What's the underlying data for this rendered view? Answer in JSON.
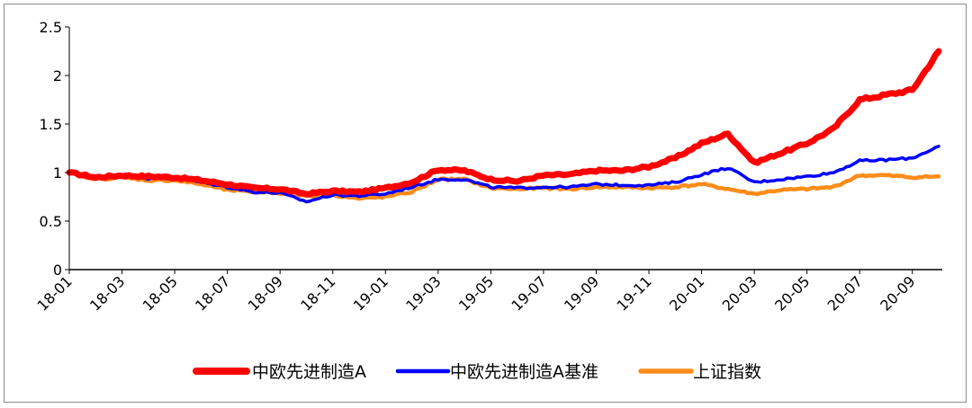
{
  "chart_data": {
    "type": "line",
    "title": "",
    "xlabel": "",
    "ylabel": "",
    "ylim": [
      0,
      2.5
    ],
    "yticks": [
      "0",
      "0.5",
      "1",
      "1.5",
      "2",
      "2.5"
    ],
    "xticks": [
      "18-01",
      "18-03",
      "18-05",
      "18-07",
      "18-09",
      "18-11",
      "19-01",
      "19-03",
      "19-05",
      "19-07",
      "19-09",
      "19-11",
      "20-01",
      "20-03",
      "20-05",
      "20-07",
      "20-09"
    ],
    "x": [
      "18-01",
      "18-02",
      "18-03",
      "18-04",
      "18-05",
      "18-06",
      "18-07",
      "18-08",
      "18-09",
      "18-10",
      "18-11",
      "18-12",
      "19-01",
      "19-02",
      "19-03",
      "19-04",
      "19-05",
      "19-06",
      "19-07",
      "19-08",
      "19-09",
      "19-10",
      "19-11",
      "19-12",
      "20-01",
      "20-02",
      "20-03",
      "20-04",
      "20-05",
      "20-06",
      "20-07",
      "20-08",
      "20-09",
      "20-10"
    ],
    "grid": false,
    "legend_position": "bottom",
    "series": [
      {
        "name": "中欧先进制造A",
        "color": "#ff0000",
        "values": [
          1.0,
          0.95,
          0.97,
          0.96,
          0.95,
          0.92,
          0.88,
          0.84,
          0.83,
          0.78,
          0.81,
          0.8,
          0.84,
          0.9,
          1.03,
          1.02,
          0.93,
          0.91,
          0.97,
          0.98,
          1.02,
          1.02,
          1.06,
          1.15,
          1.3,
          1.4,
          1.1,
          1.2,
          1.3,
          1.45,
          1.75,
          1.8,
          1.85,
          2.25
        ]
      },
      {
        "name": "中欧先进制造A基准",
        "color": "#0000ff",
        "values": [
          1.0,
          0.93,
          0.98,
          0.94,
          0.94,
          0.9,
          0.85,
          0.8,
          0.79,
          0.7,
          0.77,
          0.76,
          0.78,
          0.85,
          0.93,
          0.93,
          0.85,
          0.84,
          0.85,
          0.85,
          0.88,
          0.87,
          0.87,
          0.9,
          0.98,
          1.05,
          0.9,
          0.93,
          0.96,
          1.0,
          1.12,
          1.13,
          1.15,
          1.27
        ]
      },
      {
        "name": "上证指数",
        "color": "#ff8c1a",
        "values": [
          1.0,
          0.93,
          0.95,
          0.92,
          0.92,
          0.88,
          0.82,
          0.8,
          0.79,
          0.76,
          0.77,
          0.73,
          0.75,
          0.8,
          0.93,
          0.93,
          0.84,
          0.83,
          0.84,
          0.83,
          0.85,
          0.85,
          0.84,
          0.85,
          0.88,
          0.83,
          0.78,
          0.82,
          0.83,
          0.85,
          0.97,
          0.97,
          0.95,
          0.96
        ]
      }
    ]
  }
}
